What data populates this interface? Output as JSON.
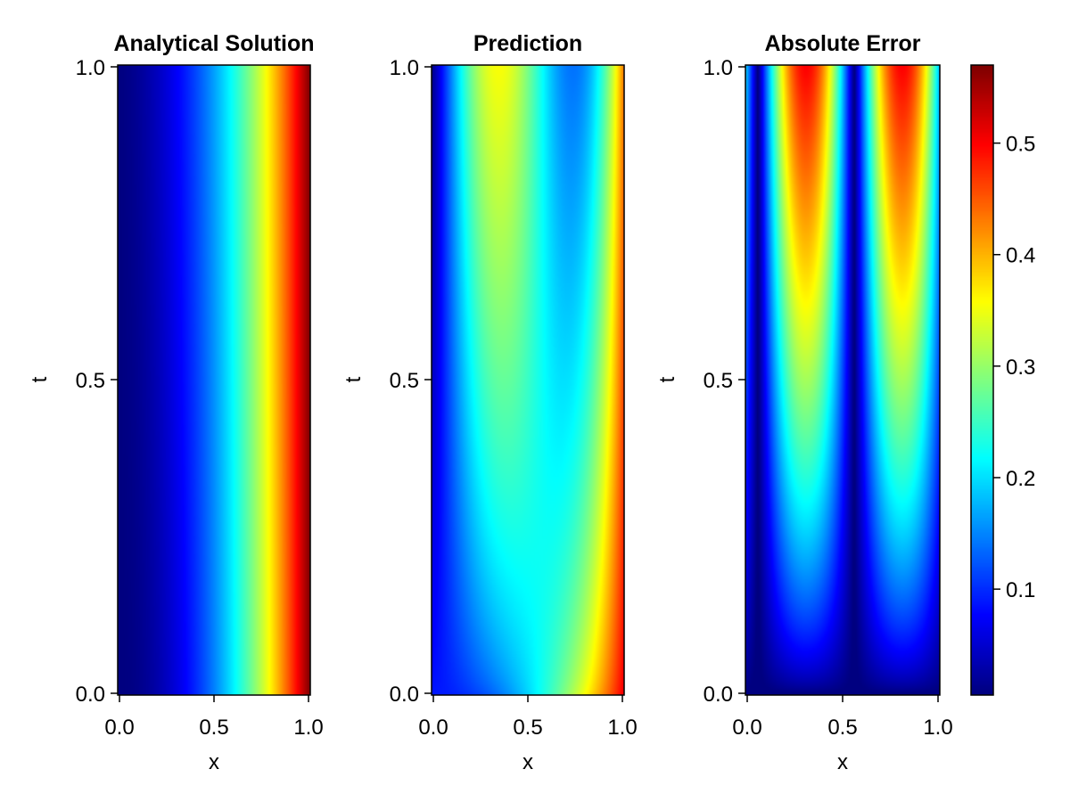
{
  "chart_data": [
    {
      "type": "heatmap",
      "title": "Analytical Solution",
      "xlabel": "x",
      "ylabel": "t",
      "xlim": [
        0,
        1
      ],
      "ylim": [
        0,
        1
      ],
      "xticks": [
        "0.0",
        "0.5",
        "1.0"
      ],
      "yticks": [
        "0.0",
        "0.5",
        "1.0"
      ],
      "colormap": "jet",
      "field": "analytical"
    },
    {
      "type": "heatmap",
      "title": "Prediction",
      "xlabel": "x",
      "ylabel": "t",
      "xlim": [
        0,
        1
      ],
      "ylim": [
        0,
        1
      ],
      "xticks": [
        "0.0",
        "0.5",
        "1.0"
      ],
      "yticks": [
        "0.0",
        "0.5",
        "1.0"
      ],
      "colormap": "jet",
      "field": "prediction"
    },
    {
      "type": "heatmap",
      "title": "Absolute Error",
      "xlabel": "x",
      "ylabel": "t",
      "xlim": [
        0,
        1
      ],
      "ylim": [
        0,
        1
      ],
      "xticks": [
        "0.0",
        "0.5",
        "1.0"
      ],
      "yticks": [
        "0.0",
        "0.5",
        "1.0"
      ],
      "colormap": "jet",
      "field": "error",
      "colorbar": {
        "range": [
          0.005,
          0.57
        ],
        "ticks": [
          0.1,
          0.2,
          0.3,
          0.4,
          0.5
        ],
        "tick_labels": [
          "0.1",
          "0.2",
          "0.3",
          "0.4",
          "0.5"
        ]
      }
    }
  ]
}
